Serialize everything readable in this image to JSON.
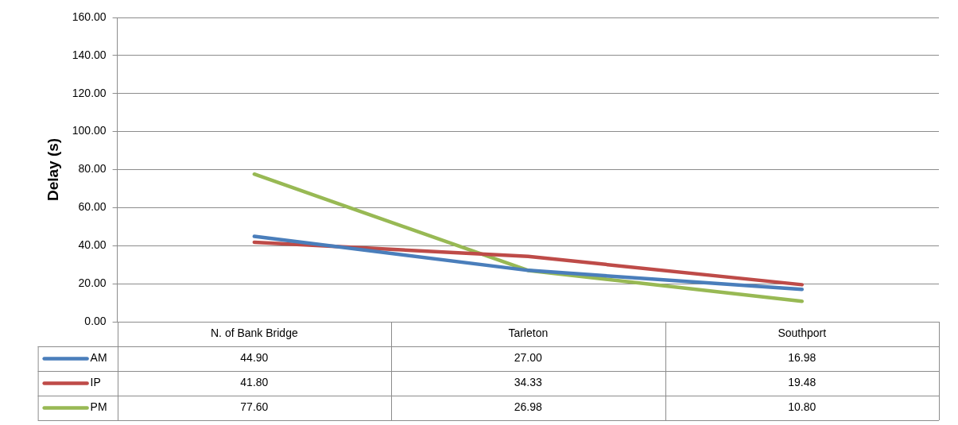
{
  "chart_data": {
    "type": "line",
    "ylabel": "Delay (s)",
    "categories": [
      "N. of Bank Bridge",
      "Tarleton",
      "Southport"
    ],
    "ylim": [
      0,
      160
    ],
    "yticks": [
      {
        "value": 0,
        "label": "0.00"
      },
      {
        "value": 20,
        "label": "20.00"
      },
      {
        "value": 40,
        "label": "40.00"
      },
      {
        "value": 60,
        "label": "60.00"
      },
      {
        "value": 80,
        "label": "80.00"
      },
      {
        "value": 100,
        "label": "100.00"
      },
      {
        "value": 120,
        "label": "120.00"
      },
      {
        "value": 140,
        "label": "140.00"
      },
      {
        "value": 160,
        "label": "160.00"
      }
    ],
    "grid": "y",
    "legend": "bottom",
    "marker": "none",
    "line_style": "solid",
    "series": [
      {
        "name": "AM",
        "color": "#4a7ebb",
        "values": [
          44.9,
          27.0,
          16.98
        ],
        "value_labels": [
          "44.90",
          "27.00",
          "16.98"
        ]
      },
      {
        "name": "IP",
        "color": "#be4b48",
        "values": [
          41.8,
          34.33,
          19.48
        ],
        "value_labels": [
          "41.80",
          "34.33",
          "19.48"
        ]
      },
      {
        "name": "PM",
        "color": "#98b954",
        "values": [
          77.6,
          26.98,
          10.8
        ],
        "value_labels": [
          "77.60",
          "26.98",
          "10.80"
        ]
      }
    ]
  }
}
